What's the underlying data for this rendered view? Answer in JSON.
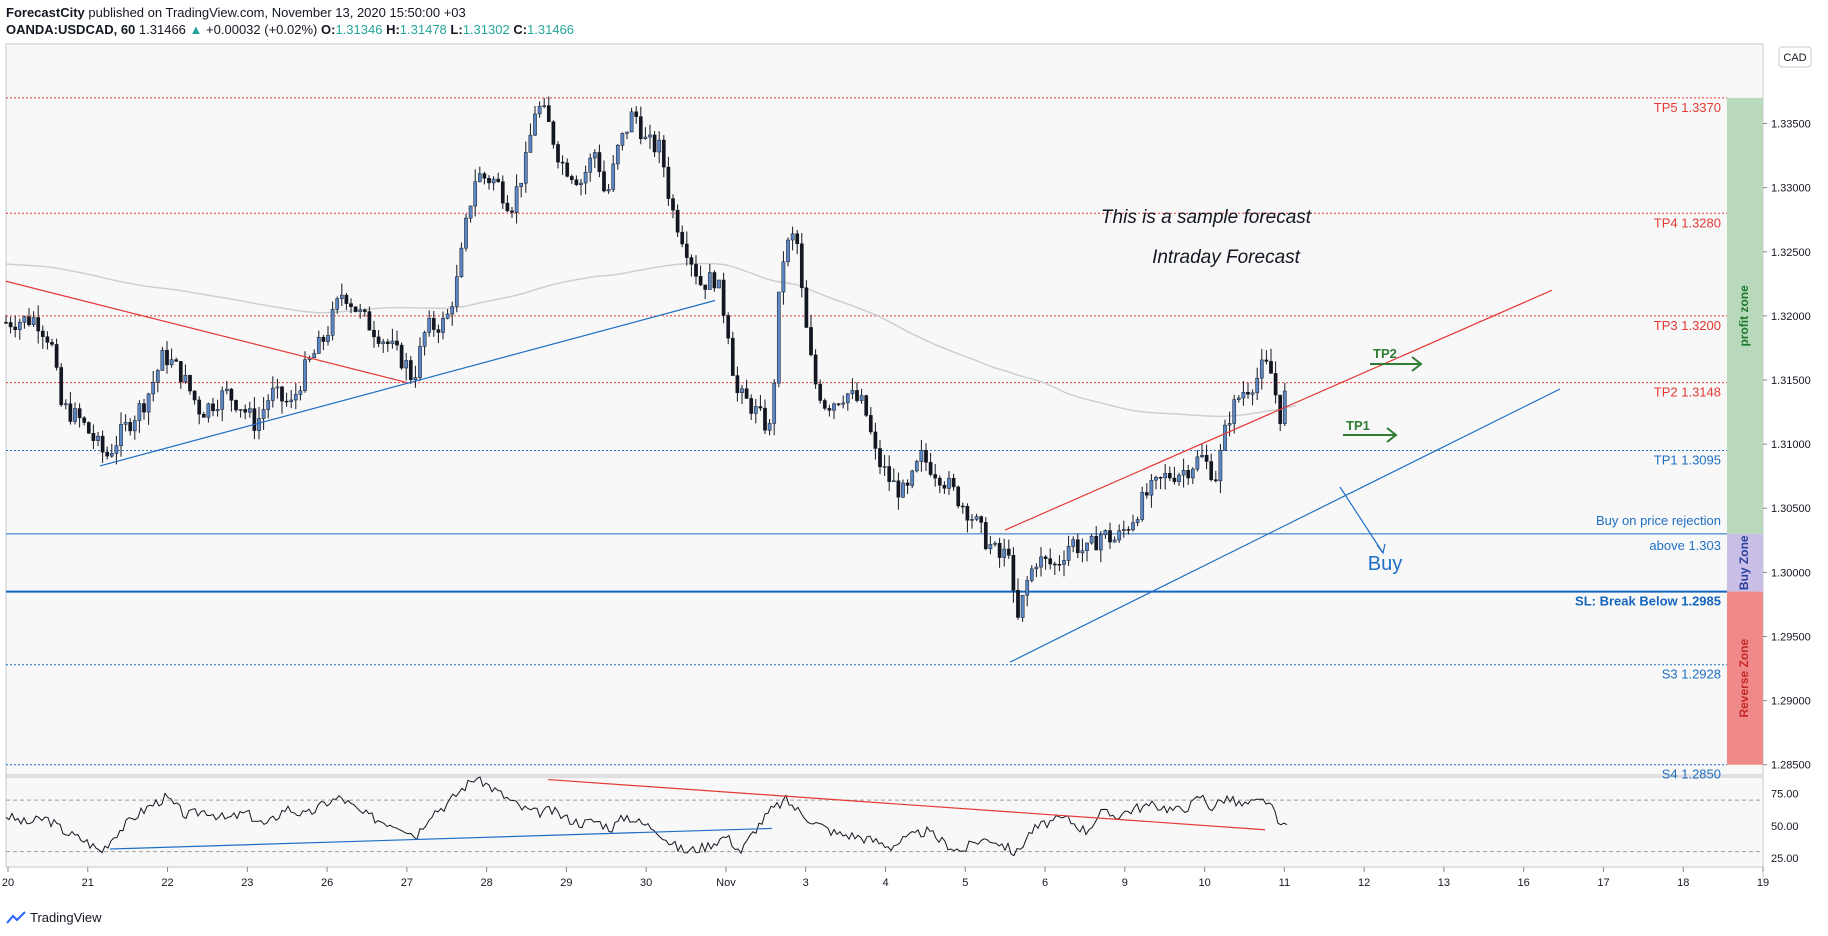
{
  "header": {
    "author": "ForecastCity",
    "published_text": "published on TradingView.com, November 13, 2020 15:50:00 +03",
    "symbol": "OANDA:USDCAD, 60",
    "last": "1.31466",
    "change": "+0.00032 (+0.02%)",
    "o_label": "O:",
    "o_value": "1.31346",
    "h_label": "H:",
    "h_value": "1.31478",
    "l_label": "L:",
    "l_value": "1.31302",
    "c_label": "C:",
    "c_value": "1.31466"
  },
  "currency_label": "CAD",
  "footer_brand": "TradingView",
  "colors": {
    "up": "#5b87c5",
    "down": "#131722",
    "tp": "#e53935",
    "support": "#1e6fc4",
    "profit_zone": "#b8d9bb",
    "buy_zone": "#c8bee6",
    "reverse_zone": "#f08a8a",
    "bg": "#f8f8f8"
  },
  "chart_data": [
    {
      "type": "candlestick",
      "title": "",
      "ylim": [
        1.2842,
        1.3412
      ],
      "y_ticks": [
        "1.33500",
        "1.33000",
        "1.32500",
        "1.32000",
        "1.31500",
        "1.31000",
        "1.30500",
        "1.30000",
        "1.29500",
        "1.29000",
        "1.28500"
      ],
      "y_tick_values": [
        1.335,
        1.33,
        1.325,
        1.32,
        1.315,
        1.31,
        1.305,
        1.3,
        1.295,
        1.29,
        1.285
      ],
      "x_labels": [
        "20",
        "21",
        "22",
        "23",
        "26",
        "27",
        "28",
        "29",
        "30",
        "Nov",
        "3",
        "4",
        "5",
        "6",
        "9",
        "10",
        "11",
        "12",
        "13",
        "16",
        "17",
        "18",
        "19"
      ],
      "price_path": [
        [
          0,
          1.3195
        ],
        [
          30,
          1.3198
        ],
        [
          45,
          1.318
        ],
        [
          55,
          1.313
        ],
        [
          75,
          1.3118
        ],
        [
          100,
          1.309
        ],
        [
          115,
          1.3108
        ],
        [
          140,
          1.3135
        ],
        [
          158,
          1.317
        ],
        [
          175,
          1.3155
        ],
        [
          195,
          1.3125
        ],
        [
          220,
          1.314
        ],
        [
          235,
          1.313
        ],
        [
          250,
          1.3115
        ],
        [
          265,
          1.314
        ],
        [
          285,
          1.313
        ],
        [
          300,
          1.316
        ],
        [
          320,
          1.3185
        ],
        [
          337,
          1.322
        ],
        [
          355,
          1.32
        ],
        [
          380,
          1.318
        ],
        [
          400,
          1.3162
        ],
        [
          407,
          1.315
        ],
        [
          420,
          1.319
        ],
        [
          440,
          1.3195
        ],
        [
          452,
          1.323
        ],
        [
          462,
          1.328
        ],
        [
          470,
          1.331
        ],
        [
          490,
          1.3305
        ],
        [
          505,
          1.3285
        ],
        [
          520,
          1.332
        ],
        [
          530,
          1.3365
        ],
        [
          540,
          1.3355
        ],
        [
          555,
          1.332
        ],
        [
          575,
          1.3305
        ],
        [
          590,
          1.333
        ],
        [
          600,
          1.329
        ],
        [
          612,
          1.333
        ],
        [
          628,
          1.336
        ],
        [
          640,
          1.3335
        ],
        [
          655,
          1.333
        ],
        [
          665,
          1.3285
        ],
        [
          680,
          1.3255
        ],
        [
          695,
          1.3225
        ],
        [
          710,
          1.323
        ],
        [
          722,
          1.319
        ],
        [
          730,
          1.314
        ],
        [
          745,
          1.313
        ],
        [
          765,
          1.311
        ],
        [
          775,
          1.324
        ],
        [
          782,
          1.3255
        ],
        [
          790,
          1.3265
        ],
        [
          798,
          1.32
        ],
        [
          808,
          1.315
        ],
        [
          820,
          1.313
        ],
        [
          840,
          1.314
        ],
        [
          858,
          1.313
        ],
        [
          870,
          1.309
        ],
        [
          885,
          1.307
        ],
        [
          900,
          1.306
        ],
        [
          915,
          1.309
        ],
        [
          935,
          1.3075
        ],
        [
          950,
          1.306
        ],
        [
          965,
          1.3045
        ],
        [
          980,
          1.3025
        ],
        [
          995,
          1.301
        ],
        [
          1003,
          1.302
        ],
        [
          1010,
          1.2955
        ],
        [
          1020,
          1.299
        ],
        [
          1030,
          1.301
        ],
        [
          1050,
          1.3005
        ],
        [
          1065,
          1.3025
        ],
        [
          1080,
          1.3015
        ],
        [
          1095,
          1.303
        ],
        [
          1110,
          1.3025
        ],
        [
          1125,
          1.304
        ],
        [
          1140,
          1.306
        ],
        [
          1160,
          1.3075
        ],
        [
          1180,
          1.308
        ],
        [
          1195,
          1.309
        ],
        [
          1210,
          1.3075
        ],
        [
          1222,
          1.312
        ],
        [
          1235,
          1.314
        ],
        [
          1250,
          1.315
        ],
        [
          1258,
          1.3162
        ],
        [
          1265,
          1.3155
        ],
        [
          1275,
          1.312
        ],
        [
          1281,
          1.3147
        ]
      ],
      "horizontal_levels": [
        {
          "name": "TP5",
          "label": "TP5 1.3370",
          "value": 1.337,
          "kind": "tp"
        },
        {
          "name": "TP4",
          "label": "TP4 1.3280",
          "value": 1.328,
          "kind": "tp"
        },
        {
          "name": "TP3",
          "label": "TP3 1.3200",
          "value": 1.32,
          "kind": "tp"
        },
        {
          "name": "TP2",
          "label": "TP2 1.3148",
          "value": 1.3148,
          "kind": "tp"
        },
        {
          "name": "TP1",
          "label": "TP1 1.3095",
          "value": 1.3095,
          "kind": "support"
        },
        {
          "name": "Buy",
          "label": "Buy on price rejection",
          "label2": "above 1.303",
          "value": 1.303,
          "kind": "buy"
        },
        {
          "name": "SL",
          "label": "SL: Break Below 1.2985",
          "value": 1.2985,
          "kind": "sl"
        },
        {
          "name": "S3",
          "label": "S3 1.2928",
          "value": 1.2928,
          "kind": "support"
        },
        {
          "name": "S4",
          "label": "S4 1.2850",
          "value": 1.285,
          "kind": "support"
        }
      ],
      "zones": [
        {
          "label": "profit zone",
          "from": 1.337,
          "to": 1.303,
          "kind": "profit"
        },
        {
          "label": "Buy Zone",
          "from": 1.303,
          "to": 1.2985,
          "kind": "buy"
        },
        {
          "label": "Reverse Zone",
          "from": 1.2985,
          "to": 1.285,
          "kind": "reverse"
        }
      ],
      "annotations": {
        "line1": "This is a sample forecast",
        "line2": "Intraday Forecast",
        "buy": "Buy",
        "tp1": "TP1",
        "tp2": "TP2"
      }
    },
    {
      "type": "line",
      "title": "",
      "ylim": [
        18,
        88
      ],
      "y_ticks": [
        "75.00",
        "50.00",
        "25.00"
      ],
      "y_tick_values": [
        75,
        50,
        25
      ],
      "guide_levels": [
        70,
        30
      ],
      "rsi_path": [
        [
          0,
          58
        ],
        [
          20,
          52
        ],
        [
          40,
          56
        ],
        [
          60,
          45
        ],
        [
          80,
          38
        ],
        [
          95,
          30
        ],
        [
          110,
          44
        ],
        [
          130,
          58
        ],
        [
          145,
          66
        ],
        [
          160,
          72
        ],
        [
          180,
          58
        ],
        [
          200,
          62
        ],
        [
          220,
          55
        ],
        [
          240,
          60
        ],
        [
          260,
          50
        ],
        [
          280,
          64
        ],
        [
          300,
          58
        ],
        [
          320,
          68
        ],
        [
          335,
          72
        ],
        [
          355,
          60
        ],
        [
          375,
          54
        ],
        [
          395,
          50
        ],
        [
          410,
          42
        ],
        [
          425,
          60
        ],
        [
          440,
          66
        ],
        [
          455,
          78
        ],
        [
          470,
          88
        ],
        [
          485,
          80
        ],
        [
          500,
          72
        ],
        [
          515,
          64
        ],
        [
          530,
          60
        ],
        [
          545,
          62
        ],
        [
          560,
          56
        ],
        [
          575,
          52
        ],
        [
          590,
          54
        ],
        [
          605,
          48
        ],
        [
          620,
          58
        ],
        [
          635,
          52
        ],
        [
          650,
          48
        ],
        [
          665,
          36
        ],
        [
          680,
          30
        ],
        [
          700,
          34
        ],
        [
          720,
          42
        ],
        [
          735,
          30
        ],
        [
          750,
          48
        ],
        [
          765,
          62
        ],
        [
          780,
          70
        ],
        [
          795,
          60
        ],
        [
          810,
          52
        ],
        [
          830,
          44
        ],
        [
          850,
          42
        ],
        [
          870,
          38
        ],
        [
          885,
          34
        ],
        [
          900,
          40
        ],
        [
          920,
          46
        ],
        [
          940,
          36
        ],
        [
          955,
          30
        ],
        [
          970,
          38
        ],
        [
          985,
          40
        ],
        [
          1000,
          34
        ],
        [
          1010,
          28
        ],
        [
          1025,
          46
        ],
        [
          1040,
          52
        ],
        [
          1060,
          56
        ],
        [
          1080,
          46
        ],
        [
          1095,
          60
        ],
        [
          1110,
          58
        ],
        [
          1130,
          64
        ],
        [
          1150,
          66
        ],
        [
          1170,
          62
        ],
        [
          1185,
          66
        ],
        [
          1195,
          74
        ],
        [
          1205,
          64
        ],
        [
          1220,
          72
        ],
        [
          1235,
          66
        ],
        [
          1250,
          68
        ],
        [
          1262,
          70
        ],
        [
          1270,
          56
        ],
        [
          1275,
          48
        ],
        [
          1282,
          56
        ]
      ]
    }
  ]
}
